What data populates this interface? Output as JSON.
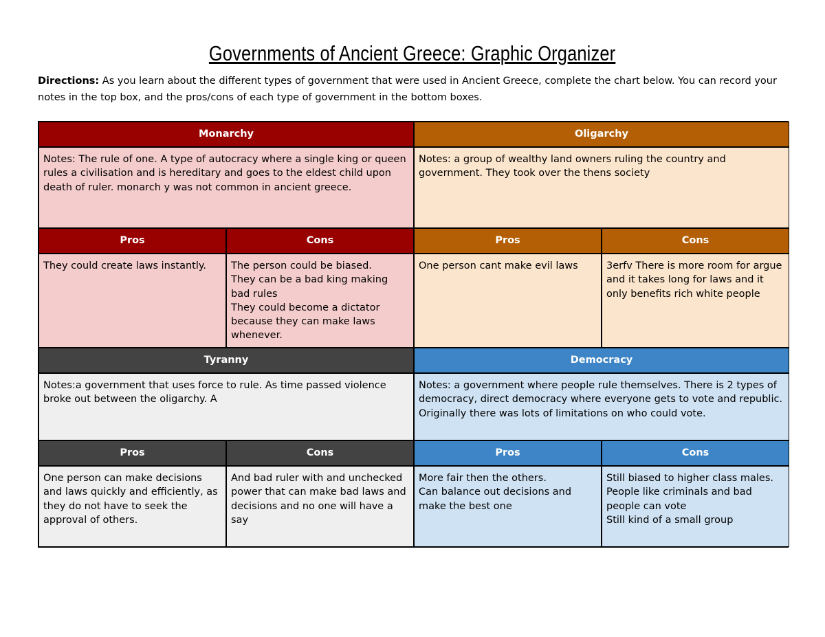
{
  "title": "Governments of Ancient Greece: Graphic Organizer",
  "directions": {
    "label": "Directions:",
    "text": " As you learn about the different types of government that were used in Ancient Greece, complete the chart below. You can record your notes in the top box, and the pros/cons of each type of government in the bottom boxes."
  },
  "colors": {
    "monarchy": "#990000",
    "oligarchy": "#b45f06",
    "tyranny": "#434343",
    "democracy": "#3d85c6"
  },
  "pros_label": "Pros",
  "cons_label": "Cons",
  "monarchy": {
    "name": "Monarchy",
    "notes": "Notes: The rule of one.   A type of autocracy where a single king or queen rules a civilisation and is hereditary and goes to the eldest child upon death of ruler. monarch y was not common in ancient greece.",
    "pros": "They could create laws instantly.",
    "cons": "The person could be biased.\nThey can be a bad king making bad rules\nThey could become a dictator because they can make laws whenever."
  },
  "oligarchy": {
    "name": "Oligarchy",
    "notes": "Notes: a group of wealthy land owners ruling the country and government. They took over the thens society",
    "pros": "One person cant make evil laws",
    "cons": "3erfv There is more room for argue and it takes long for laws and it only benefits rich white people"
  },
  "tyranny": {
    "name": "Tyranny",
    "notes": "Notes:a government that uses force to rule. As time passed violence broke out between the oligarchy. A",
    "pros": "One person can make decisions and laws quickly and efficiently, as they do not have to seek the approval of others.",
    "cons": "And bad ruler with and unchecked power that can make bad laws and decisions and no one will have a say"
  },
  "democracy": {
    "name": "Democracy",
    "notes": "Notes: a government where people rule themselves. There is 2 types of democracy, direct democracy where everyone gets to vote and republic. Originally there was lots of limitations on who could vote.",
    "pros": "More fair then the others.\nCan balance out decisions and make the best one",
    "cons": "Still biased to higher class males.\nPeople like criminals and bad people can vote\nStill kind of a small group"
  }
}
